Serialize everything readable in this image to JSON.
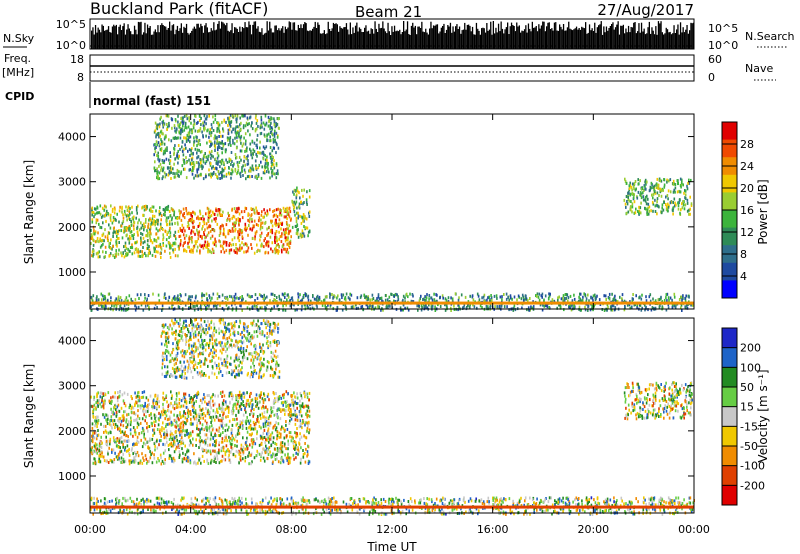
{
  "header": {
    "station": "Buckland Park (fitACF)",
    "beam": "Beam 21",
    "date": "27/Aug/2017"
  },
  "noise_panel": {
    "left_label": "N.Sky",
    "right_label": "N.Search",
    "tick_top": "10^5",
    "tick_bottom": "10^0"
  },
  "freq_panel": {
    "label_line1": "Freq.",
    "label_line2": "[MHz]",
    "tick_top": "18",
    "tick_bottom": "8",
    "right_label": "Nave",
    "right_tick_top": "60",
    "right_tick_bottom": "0"
  },
  "cpid_panel": {
    "label": "CPID",
    "mode_text": "normal (fast) 151"
  },
  "power_panel": {
    "ylabel": "Slant Range [km]",
    "colorbar_label": "Power [dB]",
    "colorbar_ticks": [
      "28",
      "24",
      "20",
      "16",
      "12",
      "8",
      "4"
    ],
    "colorbar_colors": [
      "#e00000",
      "#f04a00",
      "#f08c00",
      "#f0c800",
      "#9acd32",
      "#3cb43c",
      "#2e8b57",
      "#2e6e8b",
      "#1e4aa0",
      "#0000ff"
    ]
  },
  "velocity_panel": {
    "ylabel": "Slant Range [km]",
    "colorbar_label": "Velocity [m s⁻¹]",
    "colorbar_ticks": [
      "200",
      "100",
      "50",
      "15",
      "-15",
      "-50",
      "-100",
      "-200"
    ],
    "colorbar_colors": [
      "#1e28c8",
      "#1e64c8",
      "#228b22",
      "#66cd44",
      "#c8c8c8",
      "#f0c800",
      "#f08c00",
      "#e04000",
      "#e00000"
    ]
  },
  "xlabel": "Time UT",
  "chart_data": {
    "type": "heatmap",
    "x_ticks": [
      "00:00",
      "04:00",
      "08:00",
      "12:00",
      "16:00",
      "20:00",
      "00:00"
    ],
    "xlim_hours": [
      0,
      24
    ],
    "y_ticks": [
      1000,
      2000,
      3000,
      4000
    ],
    "ylim_km": [
      180,
      4500
    ],
    "power_scale": [
      0,
      30
    ],
    "velocity_scale": [
      -200,
      200
    ],
    "power_regions": [
      {
        "t": [
          0,
          3.5
        ],
        "r": [
          1350,
          2500
        ],
        "v": 16
      },
      {
        "t": [
          3.5,
          8
        ],
        "r": [
          1450,
          2450
        ],
        "v": 22
      },
      {
        "t": [
          8,
          8.7
        ],
        "r": [
          1800,
          2900
        ],
        "v": 14
      },
      {
        "t": [
          2.5,
          7.5
        ],
        "r": [
          3100,
          4500
        ],
        "v": 12
      },
      {
        "t": [
          21.2,
          23.9
        ],
        "r": [
          2300,
          3100
        ],
        "v": 14
      },
      {
        "t": [
          0,
          24
        ],
        "r": [
          180,
          550
        ],
        "v": 10
      }
    ],
    "velocity_regions": [
      {
        "t": [
          0,
          8.7
        ],
        "r": [
          1300,
          2900
        ],
        "v": 0
      },
      {
        "t": [
          2.8,
          7.5
        ],
        "r": [
          3200,
          4500
        ],
        "v": 20
      },
      {
        "t": [
          21.2,
          23.9
        ],
        "r": [
          2300,
          3100
        ],
        "v": 0
      },
      {
        "t": [
          0,
          24
        ],
        "r": [
          180,
          550
        ],
        "v": 30
      }
    ]
  }
}
